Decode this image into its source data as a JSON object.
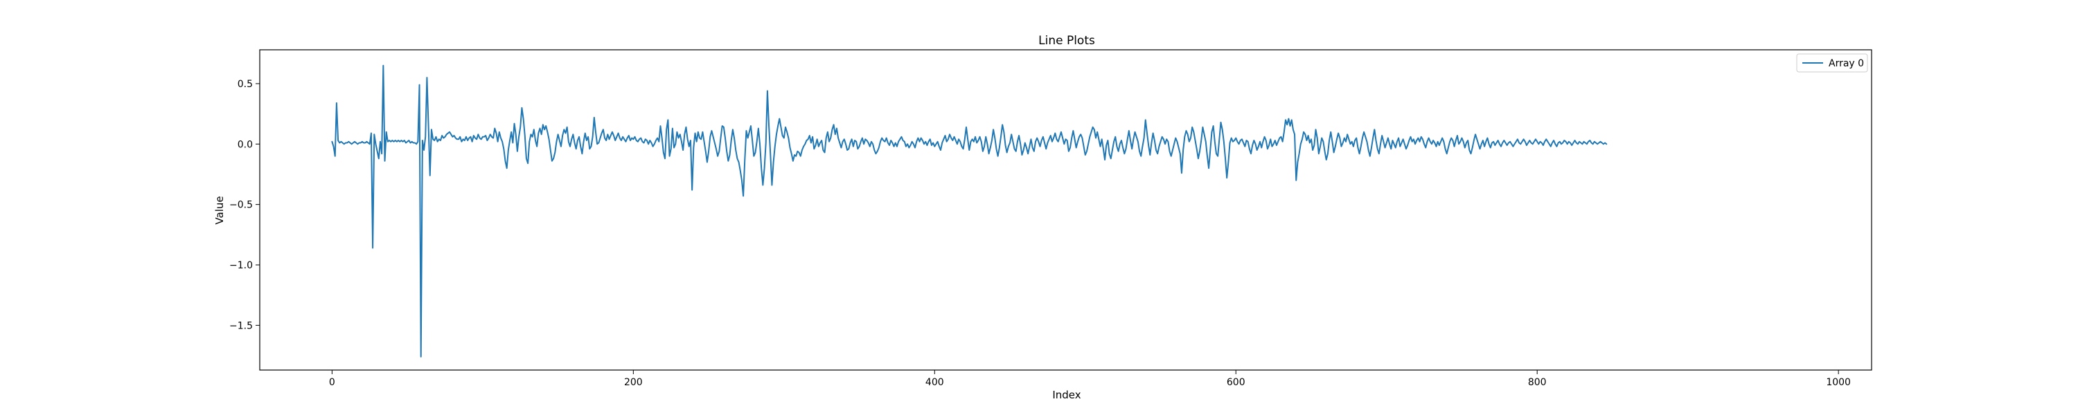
{
  "chart_data": {
    "type": "line",
    "title": "Line Plots",
    "xlabel": "Index",
    "ylabel": "Value",
    "xlim": [
      -48,
      1022
    ],
    "ylim": [
      -1.87,
      0.78
    ],
    "x_ticks": [
      0,
      200,
      400,
      600,
      800,
      1000
    ],
    "x_tick_labels": [
      "0",
      "200",
      "400",
      "600",
      "800",
      "1000"
    ],
    "y_ticks": [
      0.5,
      0.0,
      -0.5,
      -1.0,
      -1.5
    ],
    "y_tick_labels": [
      "0.5",
      "0.0",
      "−0.5",
      "−1.0",
      "−1.5"
    ],
    "grid": false,
    "legend_position": "top-right",
    "line_color": "#1f77b4",
    "series": [
      {
        "name": "Array 0",
        "x_start": 0,
        "x_step": 1,
        "values": [
          0.02,
          -0.02,
          -0.1,
          0.34,
          0.03,
          0.01,
          0.02,
          0.01,
          0.0,
          0.01,
          0.01,
          0.02,
          0.01,
          0.0,
          0.01,
          0.02,
          0.01,
          0.0,
          0.01,
          0.01,
          0.02,
          0.01,
          0.01,
          0.02,
          0.01,
          0.0,
          0.09,
          -0.86,
          0.08,
          0.0,
          -0.06,
          -0.12,
          0.02,
          -0.08,
          0.65,
          -0.14,
          0.1,
          0.02,
          0.03,
          0.02,
          0.03,
          0.02,
          0.03,
          0.02,
          0.03,
          0.02,
          0.03,
          0.02,
          0.03,
          0.01,
          0.02,
          0.03,
          0.01,
          0.02,
          0.01,
          0.01,
          0.0,
          0.02,
          0.49,
          -1.76,
          0.03,
          -0.05,
          0.06,
          0.55,
          0.15,
          -0.26,
          0.12,
          0.04,
          0.03,
          0.06,
          0.02,
          0.04,
          0.03,
          0.07,
          0.05,
          0.06,
          0.08,
          0.09,
          0.1,
          0.08,
          0.06,
          0.07,
          0.05,
          0.04,
          0.04,
          0.06,
          0.02,
          0.04,
          0.03,
          0.06,
          0.03,
          0.05,
          0.06,
          0.02,
          0.07,
          0.05,
          0.04,
          0.08,
          0.05,
          0.04,
          0.06,
          0.06,
          0.07,
          0.03,
          0.05,
          0.08,
          0.06,
          0.05,
          0.13,
          0.09,
          0.02,
          0.1,
          0.05,
          0.02,
          -0.04,
          -0.14,
          -0.2,
          -0.05,
          0.03,
          0.1,
          0.01,
          0.17,
          0.08,
          -0.06,
          0.06,
          0.14,
          0.3,
          0.21,
          0.07,
          -0.12,
          -0.16,
          0.02,
          0.08,
          0.06,
          0.12,
          0.03,
          -0.02,
          0.09,
          0.13,
          0.08,
          0.16,
          0.12,
          0.15,
          0.1,
          0.04,
          -0.05,
          -0.14,
          -0.12,
          -0.07,
          0.02,
          0.08,
          0.03,
          -0.02,
          0.07,
          0.12,
          0.09,
          0.14,
          0.02,
          -0.02,
          0.04,
          0.08,
          0.01,
          -0.04,
          0.03,
          0.06,
          -0.02,
          -0.08,
          0.02,
          0.09,
          0.03,
          0.06,
          -0.04,
          -0.02,
          0.06,
          0.22,
          0.1,
          0.0,
          0.01,
          0.05,
          0.09,
          0.12,
          0.05,
          0.03,
          0.08,
          0.04,
          0.07,
          0.1,
          0.07,
          0.03,
          0.06,
          0.09,
          0.05,
          0.03,
          0.06,
          0.04,
          0.02,
          0.05,
          0.07,
          0.03,
          0.05,
          0.04,
          0.06,
          0.03,
          0.02,
          0.04,
          0.05,
          0.02,
          0.01,
          0.04,
          0.03,
          0.0,
          0.03,
          0.01,
          -0.02,
          0.0,
          0.03,
          0.05,
          0.02,
          0.15,
          0.05,
          -0.07,
          -0.12,
          0.12,
          0.2,
          -0.1,
          -0.04,
          0.13,
          -0.03,
          0.0,
          0.1,
          0.05,
          0.08,
          0.02,
          -0.05,
          0.08,
          0.14,
          0.04,
          -0.02,
          0.03,
          -0.38,
          -0.03,
          0.09,
          0.02,
          0.1,
          0.05,
          0.04,
          0.1,
          0.02,
          -0.06,
          -0.15,
          -0.06,
          0.06,
          0.11,
          0.06,
          0.01,
          -0.04,
          -0.1,
          -0.06,
          0.05,
          0.15,
          0.14,
          0.05,
          -0.06,
          -0.14,
          -0.09,
          0.03,
          0.12,
          0.05,
          -0.05,
          -0.12,
          -0.15,
          -0.22,
          -0.3,
          -0.43,
          -0.13,
          0.11,
          0.05,
          0.1,
          0.15,
          0.03,
          -0.1,
          -0.07,
          0.02,
          0.13,
          0.0,
          -0.2,
          -0.34,
          -0.2,
          0.01,
          0.44,
          0.15,
          -0.08,
          -0.34,
          -0.15,
          -0.02,
          0.08,
          0.15,
          0.21,
          0.14,
          0.07,
          0.05,
          0.14,
          0.1,
          0.05,
          -0.03,
          -0.08,
          -0.14,
          -0.09,
          -0.1,
          -0.06,
          -0.07,
          -0.1,
          -0.05,
          -0.02,
          0.0,
          0.03,
          0.04,
          0.07,
          0.01,
          0.06,
          -0.04,
          -0.01,
          0.04,
          -0.02,
          0.01,
          0.03,
          -0.05,
          -0.07,
          0.05,
          0.1,
          0.02,
          0.05,
          0.12,
          0.16,
          0.08,
          0.13,
          0.05,
          0.01,
          -0.03,
          0.02,
          0.04,
          0.0,
          -0.05,
          -0.04,
          0.01,
          0.04,
          -0.02,
          0.03,
          0.02,
          -0.04,
          -0.02,
          0.02,
          0.05,
          0.0,
          0.04,
          0.03,
          0.01,
          -0.02,
          0.02,
          0.0,
          -0.05,
          -0.08,
          -0.06,
          -0.03,
          0.02,
          0.05,
          0.03,
          0.02,
          0.05,
          0.01,
          -0.01,
          0.03,
          0.01,
          -0.02,
          0.01,
          -0.02,
          0.02,
          0.04,
          0.06,
          0.03,
          0.02,
          -0.02,
          0.0,
          -0.03,
          -0.01,
          0.02,
          0.0,
          -0.03,
          0.02,
          0.05,
          0.02,
          0.05,
          0.03,
          0.0,
          0.02,
          -0.01,
          0.02,
          0.04,
          -0.01,
          0.01,
          -0.02,
          0.0,
          0.02,
          -0.02,
          -0.05,
          0.01,
          0.04,
          0.07,
          0.02,
          0.04,
          0.08,
          0.05,
          0.03,
          0.06,
          0.03,
          0.0,
          0.04,
          0.02,
          -0.02,
          -0.04,
          0.04,
          0.14,
          0.04,
          -0.05,
          0.02,
          0.04,
          0.02,
          0.06,
          0.01,
          0.03,
          0.06,
          0.02,
          -0.06,
          -0.02,
          0.06,
          0.0,
          -0.08,
          -0.03,
          0.03,
          0.12,
          0.05,
          -0.04,
          -0.1,
          -0.03,
          0.06,
          0.16,
          0.1,
          -0.01,
          -0.07,
          -0.02,
          0.01,
          0.08,
          0.02,
          -0.04,
          -0.06,
          0.02,
          0.07,
          0.0,
          -0.09,
          -0.05,
          0.01,
          -0.03,
          -0.08,
          -0.02,
          0.04,
          -0.03,
          -0.06,
          0.02,
          0.05,
          0.02,
          -0.02,
          0.03,
          0.06,
          0.01,
          -0.04,
          0.01,
          0.04,
          0.07,
          0.02,
          0.05,
          0.09,
          0.04,
          0.02,
          0.06,
          0.1,
          0.05,
          0.0,
          0.04,
          0.03,
          -0.06,
          -0.03,
          0.05,
          0.11,
          0.04,
          -0.03,
          0.02,
          0.06,
          0.08,
          0.05,
          -0.02,
          -0.09,
          -0.06,
          0.0,
          0.06,
          0.1,
          0.14,
          0.12,
          0.05,
          0.1,
          0.04,
          -0.02,
          0.04,
          -0.04,
          -0.13,
          -0.01,
          0.03,
          -0.08,
          -0.12,
          -0.05,
          0.02,
          0.06,
          -0.02,
          -0.06,
          0.0,
          0.03,
          -0.03,
          -0.08,
          -0.04,
          0.04,
          0.11,
          0.03,
          -0.04,
          0.04,
          0.1,
          0.06,
          0.02,
          -0.06,
          -0.1,
          -0.02,
          0.05,
          0.2,
          0.09,
          -0.01,
          -0.09,
          0.01,
          0.09,
          0.03,
          -0.05,
          -0.08,
          -0.02,
          0.02,
          0.06,
          0.04,
          0.0,
          0.04,
          0.02,
          -0.06,
          -0.1,
          -0.05,
          0.0,
          0.05,
          0.02,
          -0.03,
          -0.08,
          -0.24,
          -0.05,
          0.06,
          0.11,
          0.08,
          0.02,
          0.05,
          0.14,
          0.1,
          0.03,
          -0.04,
          -0.12,
          -0.06,
          0.03,
          0.14,
          0.08,
          0.02,
          -0.1,
          -0.2,
          -0.05,
          0.1,
          0.15,
          0.02,
          -0.08,
          -0.1,
          0.04,
          0.18,
          0.12,
          0.02,
          -0.12,
          -0.28,
          -0.15,
          0.01,
          0.05,
          0.02,
          0.03,
          0.05,
          0.02,
          0.0,
          0.03,
          0.04,
          0.01,
          -0.02,
          0.03,
          0.02,
          -0.04,
          -0.08,
          -0.01,
          0.03,
          0.0,
          -0.05,
          -0.02,
          0.02,
          -0.03,
          0.02,
          0.06,
          0.03,
          -0.04,
          -0.01,
          0.04,
          -0.02,
          0.0,
          0.03,
          -0.01,
          0.02,
          0.05,
          0.06,
          0.02,
          0.1,
          0.2,
          0.16,
          0.21,
          0.15,
          0.2,
          0.12,
          0.08,
          -0.3,
          -0.15,
          -0.08,
          0.0,
          0.04,
          0.1,
          0.08,
          0.03,
          0.07,
          0.01,
          0.04,
          -0.05,
          -0.01,
          0.12,
          0.05,
          -0.08,
          -0.02,
          0.05,
          0.02,
          -0.06,
          -0.13,
          -0.08,
          0.03,
          0.1,
          0.02,
          -0.07,
          -0.02,
          0.04,
          0.09,
          0.05,
          -0.02,
          0.01,
          0.05,
          0.02,
          0.08,
          0.04,
          0.0,
          0.02,
          -0.02,
          0.03,
          0.05,
          -0.03,
          -0.08,
          -0.02,
          0.05,
          0.1,
          0.06,
          0.02,
          -0.05,
          -0.1,
          -0.03,
          0.05,
          0.12,
          0.03,
          -0.04,
          -0.08,
          0.0,
          0.07,
          0.02,
          -0.03,
          0.01,
          0.05,
          0.0,
          -0.04,
          0.03,
          0.0,
          -0.03,
          0.02,
          0.05,
          -0.02,
          0.01,
          0.04,
          0.0,
          -0.04,
          -0.01,
          0.03,
          0.06,
          0.02,
          0.04,
          0.0,
          0.03,
          0.05,
          0.02,
          0.06,
          0.04,
          0.0,
          -0.03,
          0.02,
          0.05,
          0.02,
          0.0,
          0.03,
          0.01,
          -0.02,
          0.02,
          -0.01,
          0.02,
          0.05,
          0.02,
          -0.04,
          -0.08,
          -0.03,
          0.02,
          0.05,
          0.03,
          -0.02,
          0.03,
          0.07,
          0.0,
          0.02,
          0.05,
          0.02,
          -0.03,
          0.01,
          0.03,
          -0.05,
          -0.08,
          -0.03,
          0.03,
          0.08,
          0.04,
          0.0,
          -0.04,
          0.0,
          0.03,
          -0.02,
          0.02,
          0.05,
          0.0,
          -0.03,
          0.01,
          0.02,
          -0.01,
          0.01,
          0.03,
          0.0,
          -0.02,
          0.01,
          0.03,
          0.01,
          -0.01,
          0.01,
          0.02,
          0.0,
          -0.02,
          0.0,
          0.02,
          0.04,
          0.01,
          0.0,
          0.02,
          0.04,
          0.02,
          -0.01,
          0.01,
          0.03,
          0.01,
          0.0,
          0.02,
          0.04,
          0.02,
          0.0,
          0.02,
          0.01,
          -0.01,
          0.02,
          0.04,
          0.02,
          0.0,
          -0.02,
          0.01,
          0.03,
          0.0,
          -0.02,
          0.01,
          0.02,
          0.0,
          0.01,
          0.03,
          0.02,
          0.0,
          0.02,
          0.01,
          -0.01,
          0.01,
          0.03,
          0.01,
          0.0,
          0.02,
          0.01,
          0.0,
          0.02,
          0.01,
          0.0,
          0.02,
          0.03,
          0.01,
          0.0,
          0.02,
          0.01,
          0.0,
          0.01,
          0.02,
          0.01,
          0.0,
          0.01,
          0.0
        ]
      }
    ]
  }
}
